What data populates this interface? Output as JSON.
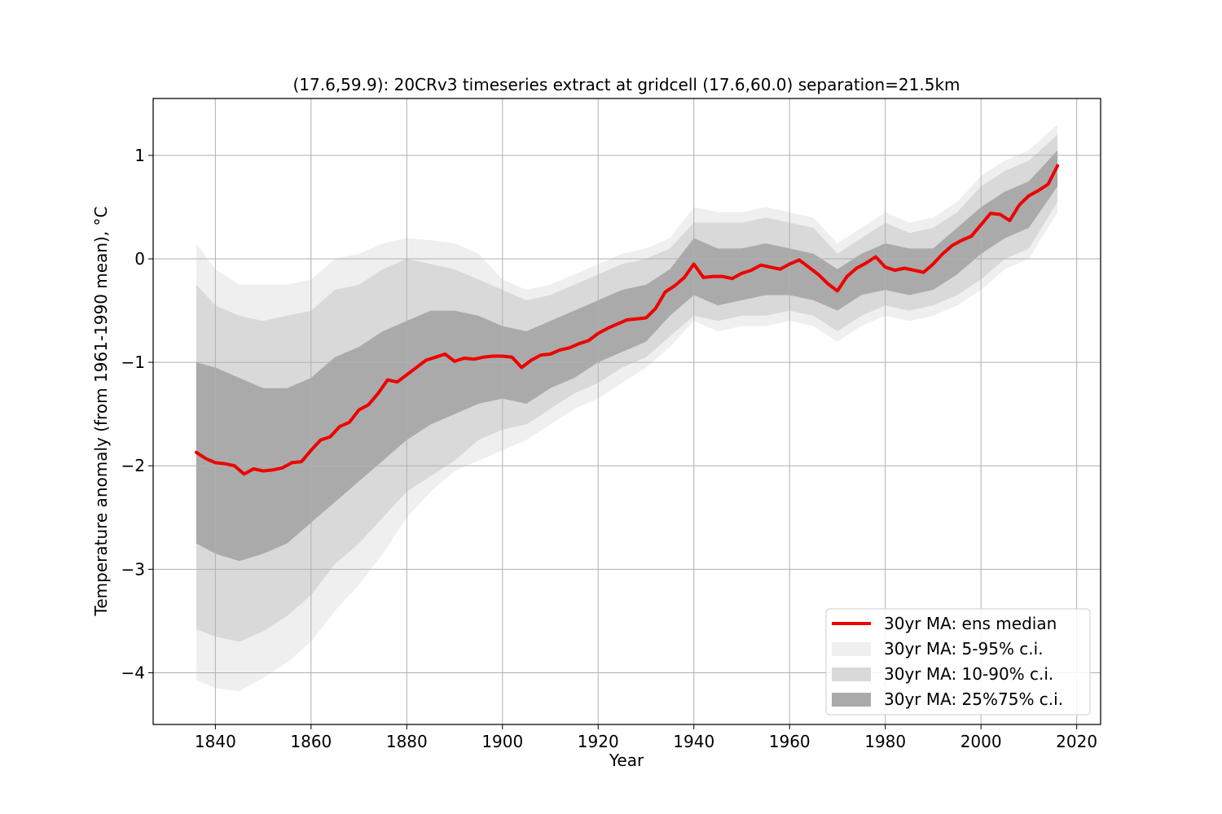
{
  "chart_data": {
    "type": "line",
    "title": "(17.6,59.9): 20CRv3 timeseries extract at gridcell (17.6,60.0) separation=21.5km",
    "xlabel": "Year",
    "ylabel": "Temperature anomaly (from 1961-1990 mean), °C",
    "xlim": [
      1827,
      2025
    ],
    "ylim": [
      -4.5,
      1.55
    ],
    "xticks": [
      1840,
      1860,
      1880,
      1900,
      1920,
      1940,
      1960,
      1980,
      2000,
      2020
    ],
    "yticks": [
      1,
      0,
      -1,
      -2,
      -3,
      -4
    ],
    "ytick_labels": [
      "1",
      "0",
      "−1",
      "−2",
      "−3",
      "−4"
    ],
    "grid": true,
    "legend_position": "lower-right",
    "colors": {
      "median": "#ee0000",
      "band_5_95": "#efefef",
      "band_10_90": "#d9d9d9",
      "band_25_75": "#aaaaaa",
      "grid": "#b0b0b0"
    },
    "series": [
      {
        "name": "30yr MA: ens median",
        "kind": "line",
        "x": [
          1836,
          1838,
          1840,
          1842,
          1844,
          1846,
          1848,
          1850,
          1852,
          1854,
          1856,
          1858,
          1860,
          1862,
          1864,
          1866,
          1868,
          1870,
          1872,
          1874,
          1876,
          1878,
          1880,
          1882,
          1884,
          1886,
          1888,
          1890,
          1892,
          1894,
          1896,
          1898,
          1900,
          1902,
          1904,
          1906,
          1908,
          1910,
          1912,
          1914,
          1916,
          1918,
          1920,
          1922,
          1924,
          1926,
          1928,
          1930,
          1932,
          1934,
          1936,
          1938,
          1940,
          1942,
          1944,
          1946,
          1948,
          1950,
          1952,
          1954,
          1956,
          1958,
          1960,
          1962,
          1964,
          1966,
          1968,
          1970,
          1972,
          1974,
          1976,
          1978,
          1980,
          1982,
          1984,
          1986,
          1988,
          1990,
          1992,
          1994,
          1996,
          1998,
          2000,
          2002,
          2004,
          2006,
          2008,
          2010,
          2012,
          2014,
          2016
        ],
        "values": [
          -1.87,
          -1.93,
          -1.97,
          -1.98,
          -2.0,
          -2.08,
          -2.03,
          -2.05,
          -2.04,
          -2.02,
          -1.97,
          -1.96,
          -1.85,
          -1.75,
          -1.72,
          -1.62,
          -1.58,
          -1.46,
          -1.41,
          -1.3,
          -1.17,
          -1.19,
          -1.12,
          -1.05,
          -0.98,
          -0.95,
          -0.92,
          -0.99,
          -0.96,
          -0.97,
          -0.95,
          -0.94,
          -0.94,
          -0.95,
          -1.05,
          -0.98,
          -0.93,
          -0.92,
          -0.88,
          -0.86,
          -0.82,
          -0.79,
          -0.72,
          -0.67,
          -0.63,
          -0.59,
          -0.58,
          -0.57,
          -0.48,
          -0.32,
          -0.26,
          -0.18,
          -0.05,
          -0.18,
          -0.17,
          -0.17,
          -0.19,
          -0.14,
          -0.11,
          -0.06,
          -0.08,
          -0.1,
          -0.05,
          -0.01,
          -0.08,
          -0.15,
          -0.24,
          -0.31,
          -0.17,
          -0.09,
          -0.04,
          0.02,
          -0.08,
          -0.11,
          -0.09,
          -0.11,
          -0.13,
          -0.05,
          0.05,
          0.13,
          0.18,
          0.22,
          0.33,
          0.44,
          0.43,
          0.37,
          0.52,
          0.61,
          0.66,
          0.72,
          0.9
        ]
      },
      {
        "name": "30yr MA: 5-95% c.i.",
        "kind": "band",
        "x": [
          1836,
          1840,
          1845,
          1850,
          1855,
          1860,
          1865,
          1870,
          1875,
          1880,
          1885,
          1890,
          1895,
          1900,
          1905,
          1910,
          1915,
          1920,
          1925,
          1930,
          1935,
          1940,
          1945,
          1950,
          1955,
          1960,
          1965,
          1970,
          1975,
          1980,
          1985,
          1990,
          1995,
          2000,
          2005,
          2010,
          2016
        ],
        "lower": [
          -4.07,
          -4.15,
          -4.18,
          -4.05,
          -3.9,
          -3.7,
          -3.4,
          -3.15,
          -2.85,
          -2.5,
          -2.25,
          -2.05,
          -1.95,
          -1.85,
          -1.75,
          -1.6,
          -1.45,
          -1.35,
          -1.2,
          -1.05,
          -0.85,
          -0.6,
          -0.7,
          -0.65,
          -0.65,
          -0.6,
          -0.65,
          -0.8,
          -0.65,
          -0.55,
          -0.6,
          -0.55,
          -0.45,
          -0.3,
          -0.1,
          0.0,
          0.45
        ],
        "upper": [
          0.15,
          -0.1,
          -0.25,
          -0.25,
          -0.25,
          -0.2,
          0.0,
          0.05,
          0.15,
          0.2,
          0.18,
          0.15,
          0.05,
          -0.2,
          -0.3,
          -0.25,
          -0.15,
          -0.05,
          0.05,
          0.1,
          0.2,
          0.5,
          0.45,
          0.45,
          0.5,
          0.45,
          0.4,
          0.15,
          0.3,
          0.45,
          0.35,
          0.4,
          0.55,
          0.8,
          0.95,
          1.05,
          1.3
        ]
      },
      {
        "name": "30yr MA: 10-90% c.i.",
        "kind": "band",
        "x": [
          1836,
          1840,
          1845,
          1850,
          1855,
          1860,
          1865,
          1870,
          1875,
          1880,
          1885,
          1890,
          1895,
          1900,
          1905,
          1910,
          1915,
          1920,
          1925,
          1930,
          1935,
          1940,
          1945,
          1950,
          1955,
          1960,
          1965,
          1970,
          1975,
          1980,
          1985,
          1990,
          1995,
          2000,
          2005,
          2010,
          2016
        ],
        "lower": [
          -3.58,
          -3.65,
          -3.7,
          -3.6,
          -3.45,
          -3.25,
          -2.95,
          -2.75,
          -2.5,
          -2.25,
          -2.1,
          -1.95,
          -1.75,
          -1.65,
          -1.6,
          -1.45,
          -1.3,
          -1.2,
          -1.05,
          -0.95,
          -0.75,
          -0.55,
          -0.6,
          -0.55,
          -0.55,
          -0.5,
          -0.55,
          -0.7,
          -0.55,
          -0.45,
          -0.5,
          -0.45,
          -0.35,
          -0.2,
          0.0,
          0.1,
          0.55
        ],
        "upper": [
          -0.25,
          -0.45,
          -0.55,
          -0.6,
          -0.55,
          -0.5,
          -0.3,
          -0.25,
          -0.1,
          0.0,
          -0.05,
          -0.1,
          -0.2,
          -0.3,
          -0.4,
          -0.35,
          -0.25,
          -0.15,
          -0.05,
          0.0,
          0.1,
          0.35,
          0.35,
          0.35,
          0.4,
          0.35,
          0.3,
          0.05,
          0.2,
          0.35,
          0.25,
          0.3,
          0.45,
          0.7,
          0.85,
          0.95,
          1.2
        ]
      },
      {
        "name": "30yr MA: 25%75% c.i.",
        "kind": "band",
        "x": [
          1836,
          1840,
          1845,
          1850,
          1855,
          1860,
          1865,
          1870,
          1875,
          1880,
          1885,
          1890,
          1895,
          1900,
          1905,
          1910,
          1915,
          1920,
          1925,
          1930,
          1935,
          1940,
          1945,
          1950,
          1955,
          1960,
          1965,
          1970,
          1975,
          1980,
          1985,
          1990,
          1995,
          2000,
          2005,
          2010,
          2016
        ],
        "lower": [
          -2.75,
          -2.85,
          -2.92,
          -2.85,
          -2.75,
          -2.55,
          -2.35,
          -2.15,
          -1.95,
          -1.75,
          -1.6,
          -1.5,
          -1.4,
          -1.35,
          -1.4,
          -1.25,
          -1.15,
          -1.0,
          -0.9,
          -0.8,
          -0.55,
          -0.35,
          -0.45,
          -0.4,
          -0.35,
          -0.35,
          -0.4,
          -0.5,
          -0.35,
          -0.3,
          -0.35,
          -0.3,
          -0.15,
          0.05,
          0.2,
          0.3,
          0.7
        ],
        "upper": [
          -1.0,
          -1.05,
          -1.15,
          -1.25,
          -1.25,
          -1.15,
          -0.95,
          -0.85,
          -0.7,
          -0.6,
          -0.5,
          -0.5,
          -0.55,
          -0.65,
          -0.7,
          -0.6,
          -0.5,
          -0.4,
          -0.3,
          -0.25,
          -0.1,
          0.2,
          0.1,
          0.1,
          0.15,
          0.1,
          0.05,
          -0.1,
          0.05,
          0.15,
          0.1,
          0.1,
          0.3,
          0.5,
          0.65,
          0.75,
          1.05
        ]
      }
    ]
  }
}
